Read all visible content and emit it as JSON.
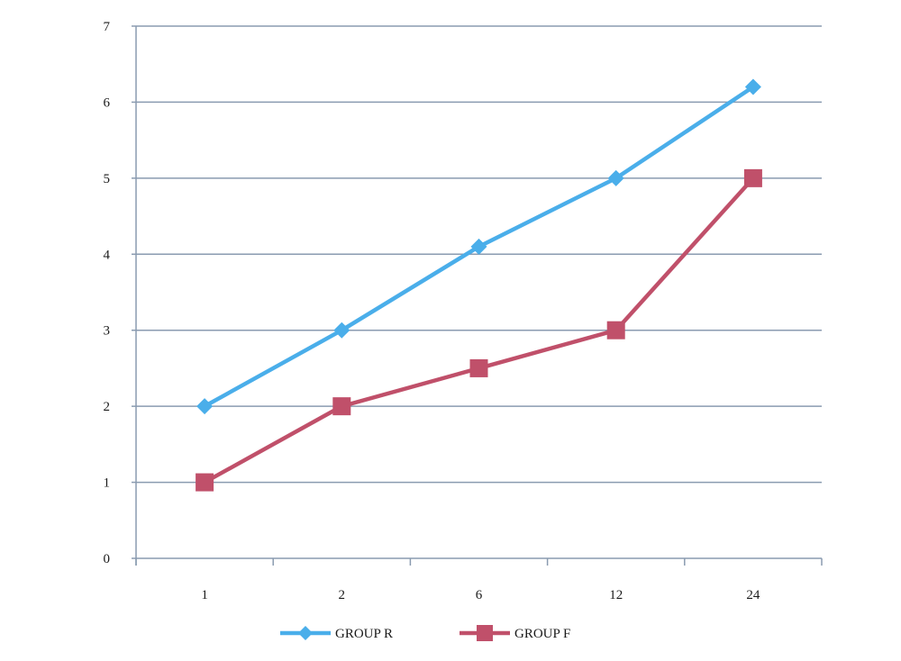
{
  "chart_data": {
    "type": "line",
    "categories": [
      "1",
      "2",
      "6",
      "12",
      "24"
    ],
    "series": [
      {
        "name": "GROUP R",
        "values": [
          2,
          3,
          4.1,
          5,
          6.2
        ],
        "color": "#4aaeea",
        "marker": "diamond"
      },
      {
        "name": "GROUP F",
        "values": [
          1,
          2,
          2.5,
          3,
          5
        ],
        "color": "#c0506a",
        "marker": "square"
      }
    ],
    "yticks": [
      "0",
      "1",
      "2",
      "3",
      "4",
      "5",
      "6",
      "7"
    ],
    "ylim": [
      0,
      7
    ],
    "grid": true,
    "legend_position": "bottom",
    "colors": {
      "grid": "#8a9bb0",
      "axis": "#8a9bb0"
    }
  }
}
